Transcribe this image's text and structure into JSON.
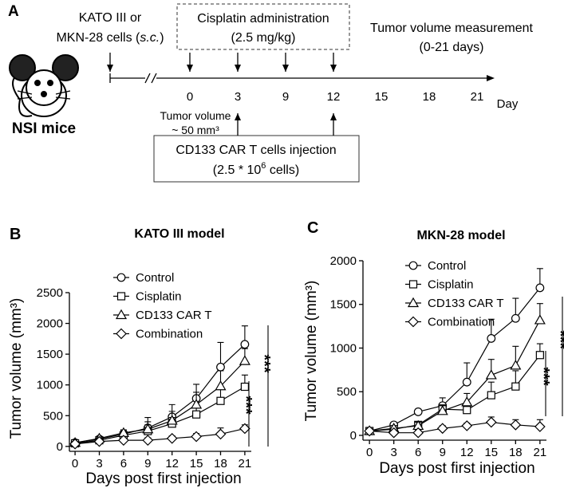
{
  "diagram": {
    "panel_label": "A",
    "cells": [
      "KATO III or",
      "MKN-28 cells (",
      "s.c.",
      ")"
    ],
    "cisplatin": [
      "Cisplatin administration",
      "(2.5 mg/kg)"
    ],
    "measurement": [
      "Tumor volume measurement",
      "(0-21 days)"
    ],
    "timeline": [
      "0",
      "3",
      "9",
      "12",
      "15",
      "18",
      "21"
    ],
    "day_label": "Day",
    "tumor_volume": [
      "Tumor volume",
      "~ 50 mm³"
    ],
    "injection": [
      "CD133 CAR T cells injection",
      "(2.5 * 10",
      "6",
      " cells)"
    ],
    "mice": "NSI mice"
  },
  "chart_data": [
    {
      "type": "line",
      "panel_label": "B",
      "title": "KATO III model",
      "x_label": "Days post first injection",
      "y_label": "Tumor volume (mm³)",
      "x": [
        0,
        3,
        6,
        9,
        12,
        15,
        18,
        21
      ],
      "xlim": [
        -0.7,
        21.8
      ],
      "xticks": [
        0,
        3,
        6,
        9,
        12,
        15,
        18,
        21
      ],
      "ylim": [
        -80,
        2500
      ],
      "yticks": [
        0,
        500,
        1000,
        1500,
        2000,
        2500
      ],
      "series": [
        {
          "name": "Control",
          "color": "#000000",
          "marker": "circle",
          "values": [
            60,
            120,
            200,
            300,
            480,
            780,
            1290,
            1660
          ],
          "errors": [
            30,
            40,
            60,
            170,
            200,
            230,
            400,
            300
          ]
        },
        {
          "name": "Cisplatin",
          "color": "#000000",
          "marker": "square",
          "values": [
            50,
            100,
            180,
            250,
            370,
            520,
            740,
            970
          ],
          "errors": [
            20,
            30,
            40,
            100,
            100,
            150,
            200,
            190
          ]
        },
        {
          "name": "CD133 CAR T",
          "color": "#000000",
          "marker": "triangle",
          "values": [
            60,
            130,
            220,
            280,
            420,
            680,
            980,
            1390
          ],
          "errors": [
            20,
            30,
            50,
            120,
            150,
            200,
            250,
            200
          ]
        },
        {
          "name": "Combination",
          "color": "#000000",
          "marker": "diamond",
          "values": [
            40,
            80,
            100,
            100,
            130,
            160,
            200,
            290
          ],
          "errors": [
            20,
            30,
            30,
            40,
            40,
            50,
            100,
            60
          ]
        }
      ],
      "annotations": [
        "***",
        "***"
      ]
    },
    {
      "type": "line",
      "panel_label": "C",
      "title": "MKN-28 model",
      "x_label": "Days post first injection",
      "y_label": "Tumor volume (mm³)",
      "x": [
        0,
        3,
        6,
        9,
        12,
        15,
        18,
        21
      ],
      "xlim": [
        -0.8,
        21.8
      ],
      "xticks": [
        0,
        3,
        6,
        9,
        12,
        15,
        18,
        21
      ],
      "ylim": [
        -55,
        2000
      ],
      "yticks": [
        0,
        500,
        1000,
        1500,
        2000
      ],
      "series": [
        {
          "name": "Control",
          "color": "#000000",
          "marker": "circle",
          "values": [
            50,
            120,
            270,
            340,
            610,
            1110,
            1340,
            1690
          ],
          "errors": [
            20,
            30,
            30,
            90,
            220,
            220,
            230,
            220
          ]
        },
        {
          "name": "Cisplatin",
          "color": "#000000",
          "marker": "square",
          "values": [
            50,
            70,
            120,
            300,
            290,
            460,
            560,
            920
          ],
          "errors": [
            20,
            30,
            30,
            50,
            60,
            150,
            180,
            130
          ]
        },
        {
          "name": "CD133 CAR T",
          "color": "#000000",
          "marker": "triangle",
          "values": [
            50,
            80,
            110,
            280,
            380,
            690,
            800,
            1320
          ],
          "errors": [
            20,
            30,
            40,
            60,
            100,
            180,
            220,
            190
          ]
        },
        {
          "name": "Combination",
          "color": "#000000",
          "marker": "diamond",
          "values": [
            50,
            30,
            30,
            80,
            110,
            150,
            120,
            100
          ],
          "errors": [
            20,
            30,
            30,
            30,
            30,
            60,
            60,
            80
          ]
        }
      ],
      "annotations": [
        "***",
        "***"
      ]
    }
  ]
}
